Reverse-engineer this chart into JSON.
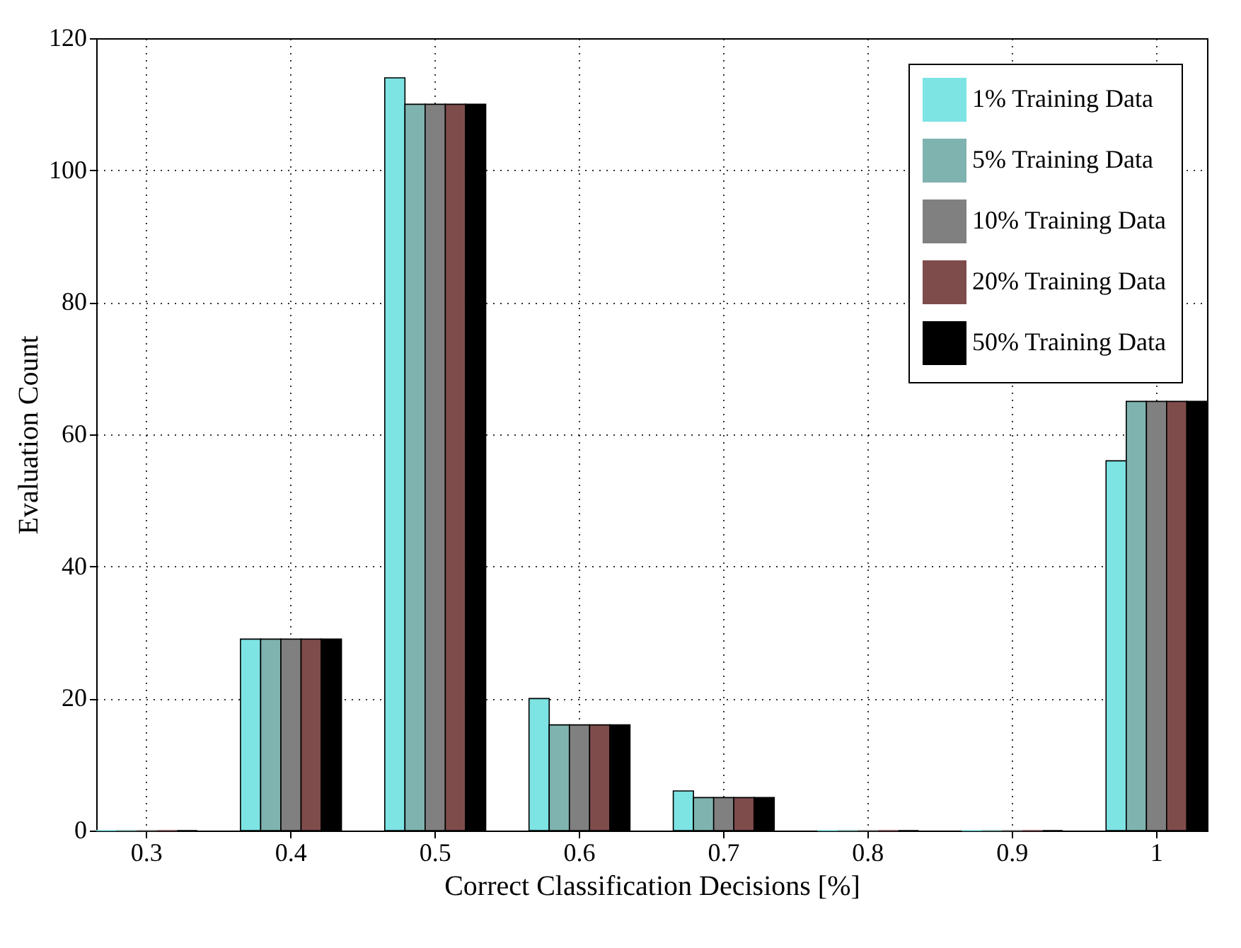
{
  "chart_data": {
    "type": "bar",
    "xlabel": "Correct Classification Decisions [%]",
    "ylabel": "Evaluation Count",
    "categories": [
      "0.3",
      "0.4",
      "0.5",
      "0.6",
      "0.7",
      "0.8",
      "0.9",
      "1"
    ],
    "series": [
      {
        "name": "1% Training Data",
        "color": "#7de3e3",
        "values": [
          0,
          29,
          114,
          20,
          6,
          0,
          0,
          56
        ]
      },
      {
        "name": "5% Training Data",
        "color": "#7fb3b0",
        "values": [
          0,
          29,
          110,
          16,
          5,
          0,
          0,
          65
        ]
      },
      {
        "name": "10% Training Data",
        "color": "#808080",
        "values": [
          0,
          29,
          110,
          16,
          5,
          0,
          0,
          65
        ]
      },
      {
        "name": "20% Training Data",
        "color": "#7f4c4c",
        "values": [
          0,
          29,
          110,
          16,
          5,
          0,
          0,
          65
        ]
      },
      {
        "name": "50% Training Data",
        "color": "#000000",
        "values": [
          0,
          29,
          110,
          16,
          5,
          0,
          0,
          65
        ]
      }
    ],
    "ylim": [
      0,
      120
    ],
    "yticks": [
      0,
      20,
      40,
      60,
      80,
      100,
      120
    ],
    "grid": true,
    "legend": "top right"
  }
}
